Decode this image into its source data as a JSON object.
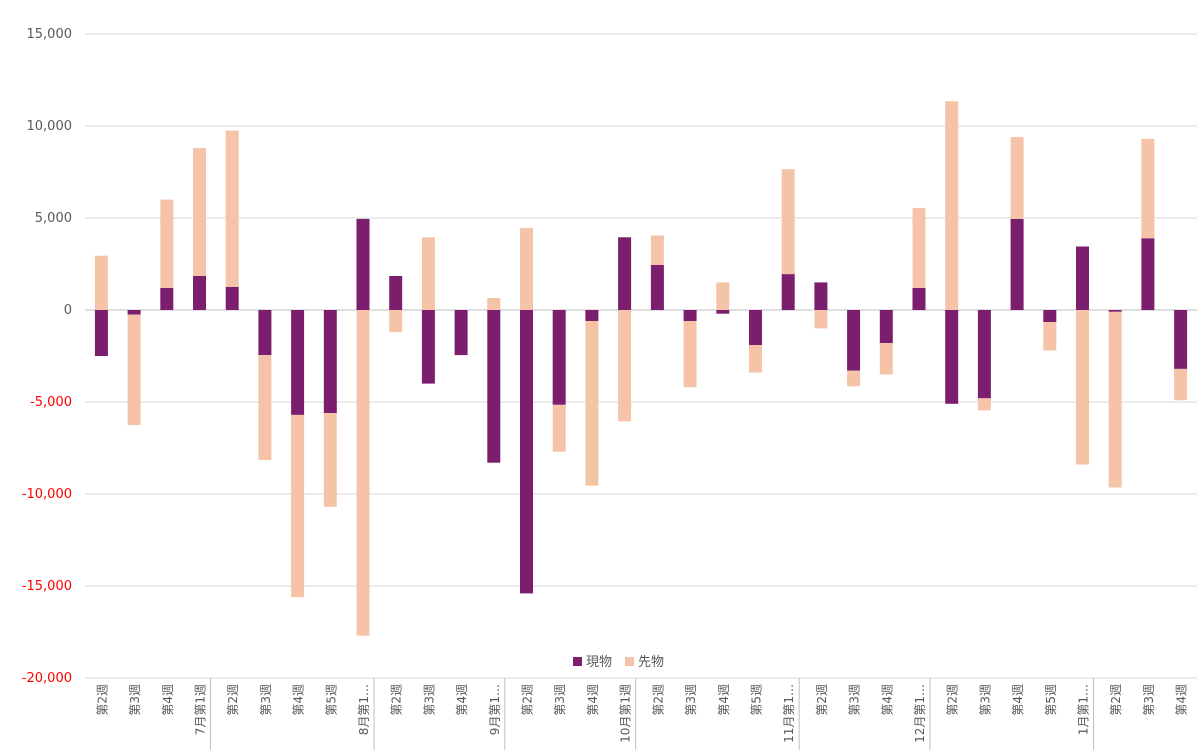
{
  "chart_data": {
    "type": "bar",
    "stacked": true,
    "title": "",
    "xlabel": "",
    "ylabel": "",
    "ylim": [
      -20000,
      15000
    ],
    "yticks": [
      15000,
      10000,
      5000,
      0,
      -5000,
      -10000,
      -15000,
      -20000
    ],
    "ytick_labels": [
      "15,000",
      "10,000",
      "5,000",
      "0",
      "-5,000",
      "-10,000",
      "-15,000",
      "-20,000"
    ],
    "negative_tick_color": "#ff0000",
    "positive_tick_color": "#595959",
    "grid": true,
    "legend_position": "bottom",
    "categories": [
      "第2週",
      "第3週",
      "第4週",
      "7月第1週",
      "第2週",
      "第3週",
      "第4週",
      "第5週",
      "8月第1…",
      "第2週",
      "第3週",
      "第4週",
      "9月第1…",
      "第2週",
      "第3週",
      "第4週",
      "10月第1週",
      "第2週",
      "第3週",
      "第4週",
      "第5週",
      "11月第1…",
      "第2週",
      "第3週",
      "第4週",
      "12月第1…",
      "第2週",
      "第3週",
      "第4週",
      "第5週",
      "1月第1…",
      "第2週",
      "第3週",
      "第4週"
    ],
    "series": [
      {
        "name": "現物",
        "color": "#7b1e6e",
        "values": [
          -2500,
          -250,
          1200,
          1850,
          1250,
          -2450,
          -5700,
          -5600,
          4950,
          1850,
          -4000,
          -2450,
          -8300,
          -15400,
          -5150,
          -600,
          3950,
          2450,
          -600,
          -200,
          -1900,
          1950,
          1500,
          -3300,
          -1800,
          1200,
          -5100,
          -4800,
          4950,
          -650,
          3450,
          -100,
          3900,
          -3200
        ]
      },
      {
        "name": "先物",
        "color": "#f5c4a8",
        "values": [
          2950,
          -6000,
          4800,
          6950,
          8500,
          -5700,
          -9900,
          -5100,
          -17700,
          -1200,
          3950,
          0,
          650,
          4450,
          -2550,
          -8950,
          -6050,
          1600,
          -3600,
          1500,
          -1500,
          5700,
          -1000,
          -850,
          -1700,
          4350,
          11350,
          -650,
          4450,
          -1550,
          -8400,
          -9550,
          5400,
          -1700
        ]
      }
    ]
  }
}
